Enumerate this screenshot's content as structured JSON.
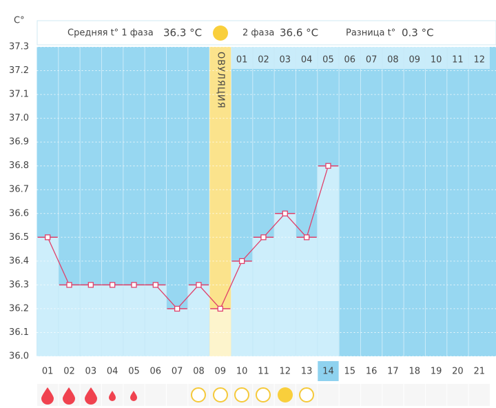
{
  "chart_data": {
    "type": "line",
    "unit_label": "C°",
    "header": {
      "phase1_label": "Средняя t° 1 фаза",
      "phase1_value": "36.3 °C",
      "phase2_label": "2 фаза",
      "phase2_value": "36.6 °C",
      "diff_label": "Разница t°",
      "diff_value": "0.3 °C"
    },
    "ovulation_label": "ОВУЛЯЦИЯ",
    "categories": [
      "01",
      "02",
      "03",
      "04",
      "05",
      "06",
      "07",
      "08",
      "09",
      "10",
      "11",
      "12",
      "13",
      "14",
      "15",
      "16",
      "17",
      "18",
      "19",
      "20",
      "21"
    ],
    "values": [
      36.5,
      36.3,
      36.3,
      36.3,
      36.3,
      36.3,
      36.2,
      36.3,
      36.2,
      36.4,
      36.5,
      36.6,
      36.5,
      36.8,
      null,
      null,
      null,
      null,
      null,
      null,
      null
    ],
    "phase2_days": [
      "01",
      "02",
      "03",
      "04",
      "05",
      "06",
      "07",
      "08",
      "09",
      "10",
      "11",
      "12"
    ],
    "ylim": [
      36.0,
      37.3
    ],
    "yticks": [
      {
        "value": 36.0,
        "label": "36.0"
      },
      36.1,
      36.2,
      36.3,
      36.4,
      36.5,
      36.6,
      36.7,
      36.8,
      36.9,
      {
        "value": 37.0,
        "label": "37.0"
      },
      37.1,
      37.2,
      37.3
    ],
    "color": "#e0406a",
    "grid": true
  }
}
